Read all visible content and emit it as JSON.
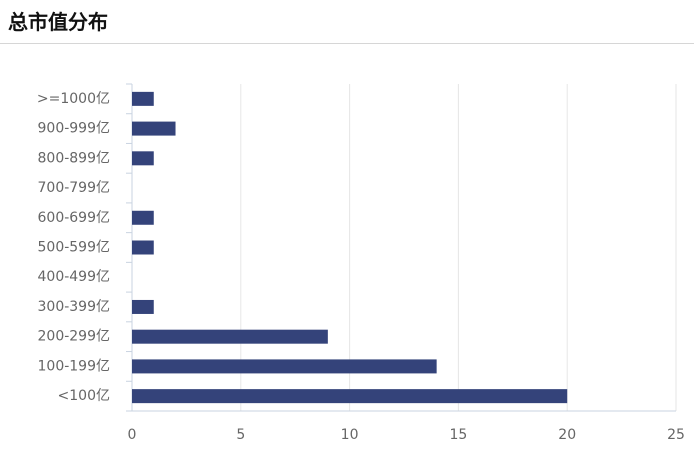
{
  "chart_data": {
    "type": "hbar",
    "title": "总市值分布",
    "categories": [
      "<100亿",
      "100-199亿",
      "200-299亿",
      "300-399亿",
      "400-499亿",
      "500-599亿",
      "600-699亿",
      "700-799亿",
      "800-899亿",
      "900-999亿",
      ">=1000亿"
    ],
    "values": [
      20,
      14,
      9,
      1,
      0,
      1,
      1,
      0,
      1,
      2,
      1
    ],
    "color": "#34437a",
    "xlim": [
      0,
      25
    ],
    "xticks": [
      0,
      5,
      10,
      15,
      20,
      25
    ],
    "grid": true
  }
}
